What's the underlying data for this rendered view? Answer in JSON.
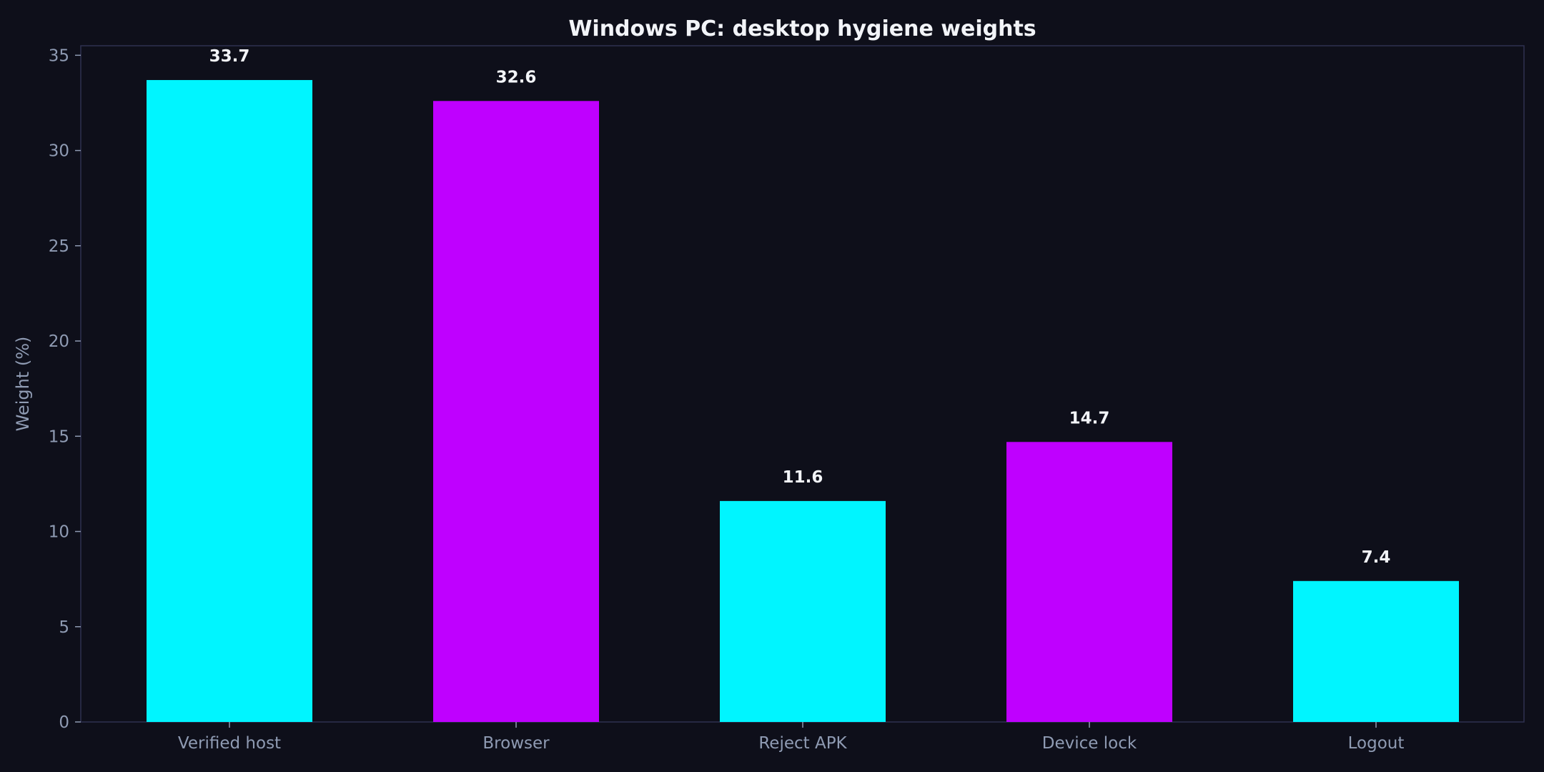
{
  "chart_data": {
    "type": "bar",
    "title": "Windows PC: desktop hygiene weights",
    "xlabel": "",
    "ylabel": "Weight (%)",
    "categories": [
      "Verified host",
      "Browser",
      "Reject APK",
      "Device lock",
      "Logout"
    ],
    "values": [
      33.7,
      32.6,
      11.6,
      14.7,
      7.4
    ],
    "value_labels": [
      "33.7",
      "32.6",
      "11.6",
      "14.7",
      "7.4"
    ],
    "bar_colors": [
      "#00f5ff",
      "#bf00ff",
      "#00f5ff",
      "#bf00ff",
      "#00f5ff"
    ],
    "ylim": [
      0,
      35.5
    ],
    "yticks": [
      0,
      5,
      10,
      15,
      20,
      25,
      30,
      35
    ],
    "ytick_labels": [
      "0",
      "5",
      "10",
      "15",
      "20",
      "25",
      "30",
      "35"
    ],
    "grid": false,
    "legend": "none"
  },
  "colors": {
    "background": "#0e0f1a",
    "axes_frame": "#2e3150",
    "text": "#8f9bb3",
    "title": "#f2f4f8"
  }
}
